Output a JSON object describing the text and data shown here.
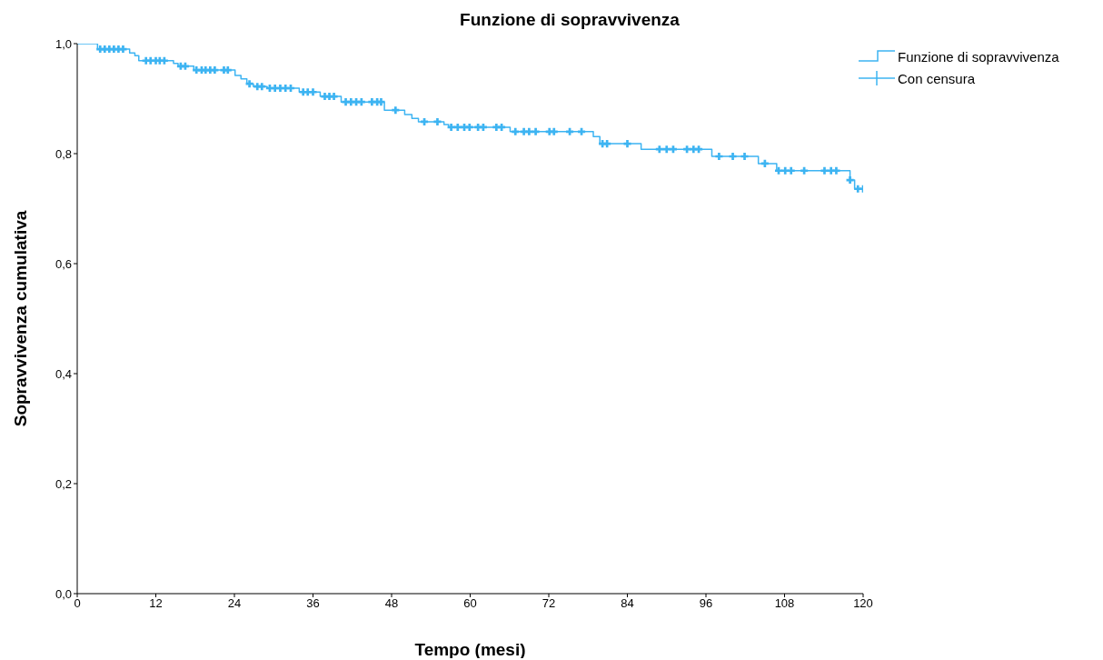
{
  "chart_data": {
    "type": "step",
    "title": "Funzione di sopravvivenza",
    "xlabel": "Tempo (mesi)",
    "ylabel": "Sopravvivenza cumulativa",
    "xlim": [
      0,
      120
    ],
    "xticks": [
      0,
      12,
      24,
      36,
      48,
      60,
      72,
      84,
      96,
      108,
      120
    ],
    "ylim": [
      0,
      1
    ],
    "yticks": [
      {
        "value": 0,
        "label": "0,0"
      },
      {
        "value": 0.2,
        "label": "0,2"
      },
      {
        "value": 0.4,
        "label": "0,4"
      },
      {
        "value": 0.6,
        "label": "0,6"
      },
      {
        "value": 0.8,
        "label": "0,8"
      },
      {
        "value": 1,
        "label": "1,0"
      }
    ],
    "grid": false,
    "legend": "top right",
    "series": [
      {
        "name": "Funzione di sopravvivenza",
        "marker": "none",
        "color": "#3db4f2",
        "x": [
          0,
          3.1,
          8,
          8.8,
          9.4,
          14.7,
          15.4,
          17.8,
          24.1,
          25,
          25.9,
          26.9,
          29,
          33.9,
          37.1,
          40.3,
          46.9,
          50,
          51.1,
          52.1,
          56,
          56.7,
          66.1,
          78.8,
          79.8,
          86.1,
          96.9,
          104,
          106.8,
          118,
          118.7,
          120
        ],
        "values": [
          1,
          0.99,
          0.983,
          0.978,
          0.969,
          0.964,
          0.959,
          0.952,
          0.942,
          0.936,
          0.927,
          0.922,
          0.919,
          0.912,
          0.904,
          0.894,
          0.879,
          0.871,
          0.864,
          0.858,
          0.853,
          0.848,
          0.84,
          0.831,
          0.818,
          0.808,
          0.795,
          0.782,
          0.769,
          0.752,
          0.736,
          0.736
        ]
      },
      {
        "name": "Con censura",
        "type": "scatter",
        "marker": "cross",
        "color": "#3db4f2",
        "x": [
          3.5,
          4.2,
          4.9,
          5.6,
          6.3,
          7,
          10.5,
          11.2,
          12,
          12.6,
          13.3,
          15.8,
          16.5,
          18.2,
          19,
          19.6,
          20.3,
          21,
          22.4,
          23,
          26.3,
          27.5,
          28.2,
          29.4,
          30.2,
          31,
          31.8,
          32.6,
          34.5,
          35.2,
          36,
          37.8,
          38.5,
          39.2,
          41,
          41.8,
          42.6,
          43.4,
          45,
          45.8,
          46.4,
          48.6,
          53,
          55,
          57.1,
          58.1,
          59.1,
          59.9,
          61.2,
          62,
          64,
          64.8,
          66.9,
          68.2,
          69,
          70,
          72.1,
          72.8,
          75.2,
          77,
          80.2,
          80.9,
          84,
          88.9,
          90,
          91,
          93.1,
          94.1,
          94.9,
          98,
          100.1,
          101.9,
          105,
          107.1,
          108.1,
          109,
          111,
          114.1,
          115.1,
          115.9,
          118,
          119.2,
          120
        ],
        "values": [
          0.99,
          0.99,
          0.99,
          0.99,
          0.99,
          0.99,
          0.969,
          0.969,
          0.969,
          0.969,
          0.969,
          0.959,
          0.959,
          0.952,
          0.952,
          0.952,
          0.952,
          0.952,
          0.952,
          0.952,
          0.927,
          0.922,
          0.922,
          0.919,
          0.919,
          0.919,
          0.919,
          0.919,
          0.912,
          0.912,
          0.912,
          0.904,
          0.904,
          0.904,
          0.894,
          0.894,
          0.894,
          0.894,
          0.894,
          0.894,
          0.894,
          0.879,
          0.858,
          0.858,
          0.848,
          0.848,
          0.848,
          0.848,
          0.848,
          0.848,
          0.848,
          0.848,
          0.84,
          0.84,
          0.84,
          0.84,
          0.84,
          0.84,
          0.84,
          0.84,
          0.818,
          0.818,
          0.818,
          0.808,
          0.808,
          0.808,
          0.808,
          0.808,
          0.808,
          0.795,
          0.795,
          0.795,
          0.782,
          0.769,
          0.769,
          0.769,
          0.769,
          0.769,
          0.769,
          0.769,
          0.752,
          0.736,
          0.736
        ]
      }
    ]
  }
}
